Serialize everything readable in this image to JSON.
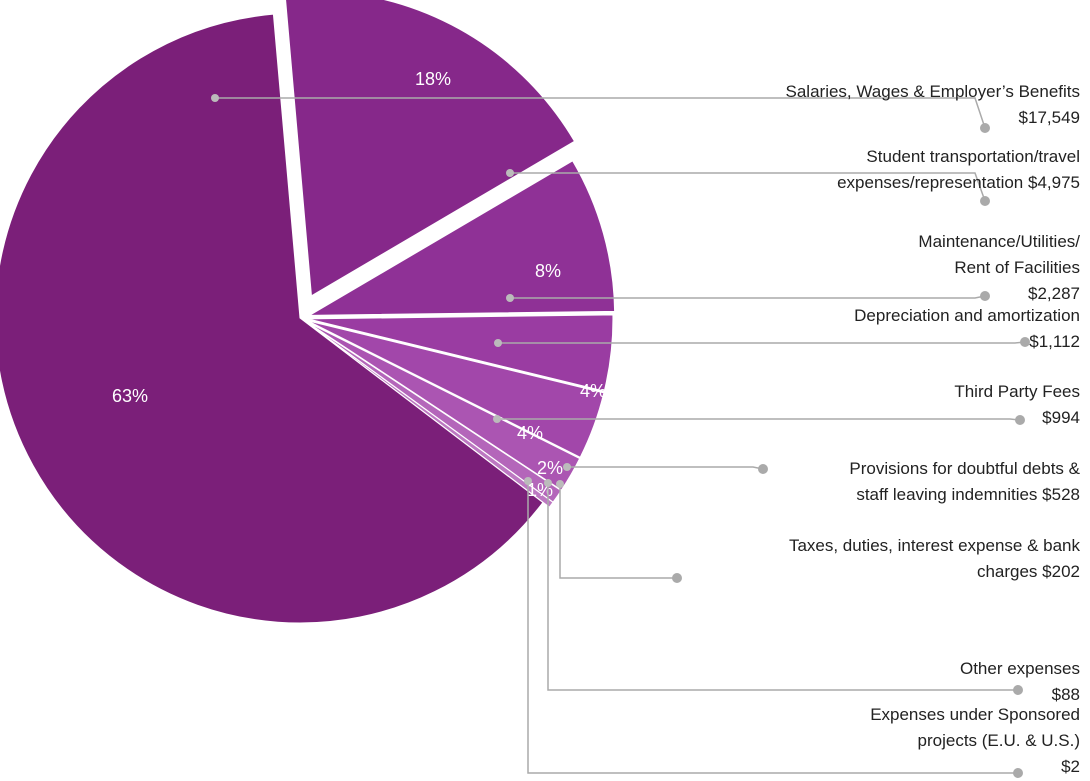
{
  "chart_data": {
    "type": "pie",
    "categories": [
      "Salaries, Wages & Employer’s Benefits",
      "Student transportation/travel\nexpenses/representation",
      "Maintenance/Utilities/\nRent of Facilities",
      "Depreciation and amortization",
      "Third Party Fees",
      "Provisions for doubtful debts &\nstaff leaving indemnities",
      "Taxes, duties, interest expense & bank\ncharges",
      "Other expenses",
      "Expenses under Sponsored\nprojects (E.U. & U.S.)"
    ],
    "values": [
      17549,
      4975,
      2287,
      1112,
      994,
      528,
      202,
      88,
      2
    ],
    "value_labels": [
      "$17,549",
      "$4,975",
      "$2,287",
      "$1,112",
      "$994",
      "$528",
      "$202",
      "$88",
      "$2"
    ],
    "percent_labels": [
      "63%",
      "18%",
      "8%",
      "4%",
      "4%",
      "2%",
      "1%",
      null,
      null
    ],
    "colors": [
      "#7b1f79",
      "#86288a",
      "#8f3196",
      "#9a3ca2",
      "#a247aa",
      "#ab55b2",
      "#b466ba",
      "#bd78c2",
      "#c68ac9"
    ]
  }
}
